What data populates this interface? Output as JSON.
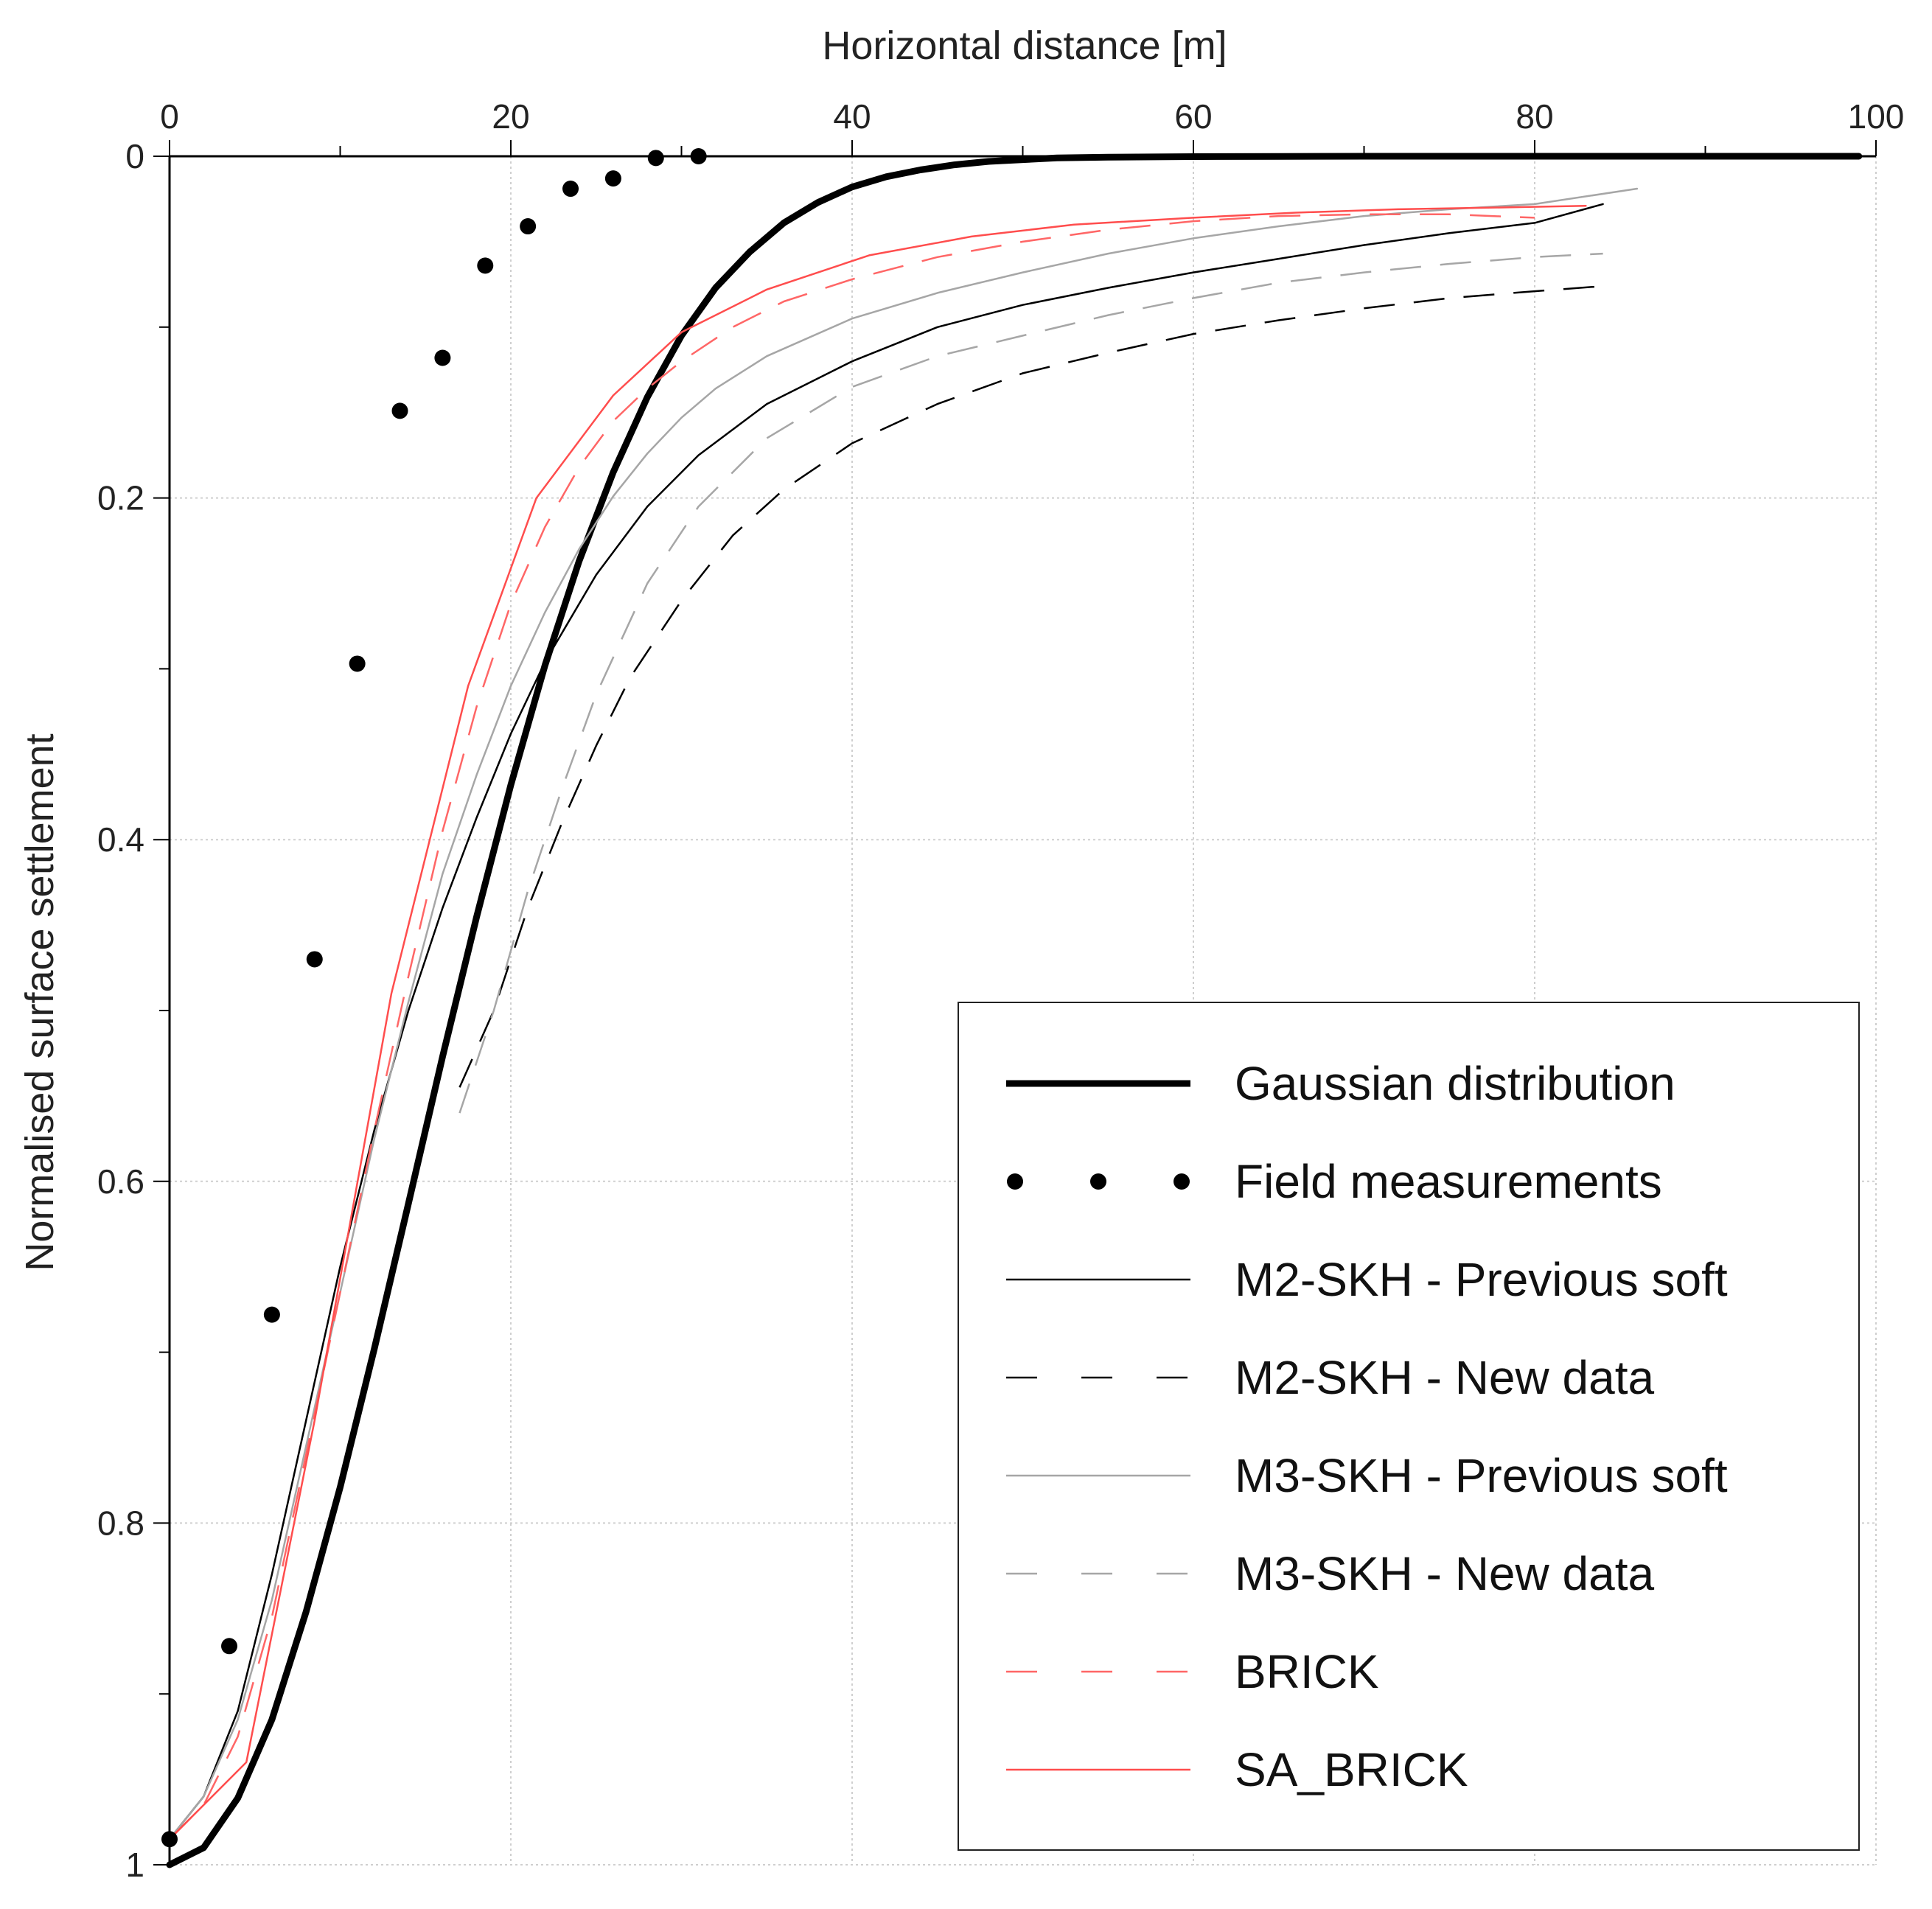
{
  "chart_data": {
    "type": "line",
    "title": "",
    "xlabel": "Horizontal distance [m]",
    "ylabel": "Normalised surface settlement",
    "xlim": [
      0,
      100
    ],
    "ylim": [
      0,
      1
    ],
    "y_inverted": true,
    "x_axis_position": "top",
    "grid": true,
    "legend_position": "bottom-right",
    "x_ticks": [
      0,
      20,
      40,
      60,
      80,
      100
    ],
    "x_tick_labels": [
      "0",
      "20",
      "40",
      "60",
      "80",
      "100"
    ],
    "y_ticks": [
      0,
      0.2,
      0.4,
      0.6,
      0.8,
      1
    ],
    "y_tick_labels": [
      "0",
      "0.2",
      "0.4",
      "0.6",
      "0.8",
      "1"
    ],
    "series": [
      {
        "name": "Gaussian distribution",
        "style": "gaussian",
        "color": "#000000",
        "dash": "solid",
        "width": "thick",
        "x": [
          0,
          2,
          4,
          6,
          8,
          10,
          12,
          14,
          16,
          18,
          20,
          22,
          24,
          26,
          28,
          30,
          32,
          34,
          36,
          38,
          40,
          42,
          44,
          46,
          48,
          50,
          52,
          55,
          60,
          65,
          70,
          80,
          90,
          99
        ],
        "y": [
          1.0,
          0.99,
          0.961,
          0.915,
          0.852,
          0.779,
          0.698,
          0.613,
          0.527,
          0.445,
          0.368,
          0.298,
          0.237,
          0.185,
          0.141,
          0.105,
          0.077,
          0.056,
          0.039,
          0.027,
          0.018,
          0.012,
          0.008,
          0.005,
          0.003,
          0.002,
          0.001,
          0.0005,
          0.0002,
          0.0001,
          0,
          0,
          0,
          0
        ]
      },
      {
        "name": "Field measurements",
        "style": "markers",
        "color": "#000000",
        "x": [
          0,
          3.5,
          6,
          8.5,
          11,
          13.5,
          16,
          18.5,
          21,
          23.5,
          26,
          28.5,
          31
        ],
        "y": [
          0.985,
          0.872,
          0.678,
          0.47,
          0.297,
          0.149,
          0.118,
          0.064,
          0.041,
          0.019,
          0.013,
          0.001,
          0.0
        ]
      },
      {
        "name": "M2-SKH - Previous soft",
        "style": "m2-previous",
        "color": "#000000",
        "dash": "solid",
        "width": "thin",
        "x": [
          0,
          2,
          4,
          6,
          8,
          10,
          12,
          14,
          16,
          18,
          20,
          22,
          25,
          28,
          31,
          35,
          40,
          45,
          50,
          55,
          60,
          65,
          70,
          75,
          80,
          84
        ],
        "y": [
          0.985,
          0.96,
          0.91,
          0.83,
          0.74,
          0.65,
          0.57,
          0.5,
          0.44,
          0.387,
          0.338,
          0.296,
          0.245,
          0.205,
          0.175,
          0.145,
          0.12,
          0.1,
          0.087,
          0.077,
          0.068,
          0.06,
          0.052,
          0.045,
          0.039,
          0.028
        ]
      },
      {
        "name": "M2-SKH - New data",
        "style": "m2-new",
        "color": "#000000",
        "dash": "long-dash",
        "width": "thin",
        "x": [
          17,
          19,
          21,
          23,
          25,
          27,
          30,
          33,
          36,
          40,
          45,
          50,
          55,
          60,
          65,
          70,
          75,
          80,
          84
        ],
        "y": [
          0.545,
          0.5,
          0.44,
          0.39,
          0.345,
          0.305,
          0.26,
          0.222,
          0.195,
          0.168,
          0.145,
          0.127,
          0.115,
          0.104,
          0.096,
          0.089,
          0.083,
          0.079,
          0.076
        ]
      },
      {
        "name": "M3-SKH - Previous soft",
        "style": "m3-previous",
        "color": "#a6a6a6",
        "dash": "solid",
        "width": "thin",
        "x": [
          0,
          2,
          4,
          6,
          8,
          10,
          12,
          14,
          16,
          18,
          20,
          22,
          24,
          26,
          28,
          30,
          32,
          35,
          40,
          45,
          50,
          55,
          60,
          65,
          70,
          75,
          80,
          86
        ],
        "y": [
          0.985,
          0.96,
          0.915,
          0.845,
          0.755,
          0.665,
          0.575,
          0.495,
          0.42,
          0.362,
          0.31,
          0.267,
          0.23,
          0.199,
          0.174,
          0.153,
          0.136,
          0.117,
          0.095,
          0.08,
          0.068,
          0.057,
          0.048,
          0.041,
          0.035,
          0.031,
          0.028,
          0.019
        ]
      },
      {
        "name": "M3-SKH - New data",
        "style": "m3-new",
        "color": "#a6a6a6",
        "dash": "long-dash",
        "width": "thin",
        "x": [
          17,
          19,
          21,
          23,
          25,
          28,
          31,
          35,
          40,
          45,
          50,
          55,
          60,
          65,
          70,
          75,
          80,
          84
        ],
        "y": [
          0.56,
          0.5,
          0.43,
          0.37,
          0.315,
          0.25,
          0.205,
          0.165,
          0.135,
          0.117,
          0.105,
          0.093,
          0.083,
          0.074,
          0.068,
          0.063,
          0.059,
          0.057
        ]
      },
      {
        "name": "BRICK",
        "style": "brick",
        "color": "#ff6666",
        "dash": "long-dash",
        "width": "thin",
        "x": [
          0,
          2,
          4,
          6,
          8,
          10,
          12,
          14,
          16,
          18,
          20,
          22,
          24,
          26,
          28,
          30,
          33,
          36,
          40,
          45,
          50,
          55,
          60,
          65,
          70,
          75,
          80
        ],
        "y": [
          0.985,
          0.965,
          0.925,
          0.855,
          0.76,
          0.665,
          0.57,
          0.48,
          0.395,
          0.322,
          0.262,
          0.217,
          0.182,
          0.155,
          0.136,
          0.12,
          0.1,
          0.085,
          0.072,
          0.059,
          0.05,
          0.043,
          0.038,
          0.035,
          0.034,
          0.034,
          0.036
        ]
      },
      {
        "name": "SA_BRICK",
        "style": "sa-brick",
        "color": "#ff4d4d",
        "dash": "solid",
        "width": "thin",
        "x": [
          0,
          4.5,
          8.5,
          13,
          17.5,
          21.5,
          26,
          30,
          35,
          41,
          47,
          53,
          60,
          66,
          72,
          78,
          83
        ],
        "y": [
          0.985,
          0.94,
          0.74,
          0.49,
          0.31,
          0.2,
          0.14,
          0.103,
          0.078,
          0.058,
          0.047,
          0.04,
          0.036,
          0.033,
          0.031,
          0.03,
          0.029
        ]
      }
    ]
  }
}
